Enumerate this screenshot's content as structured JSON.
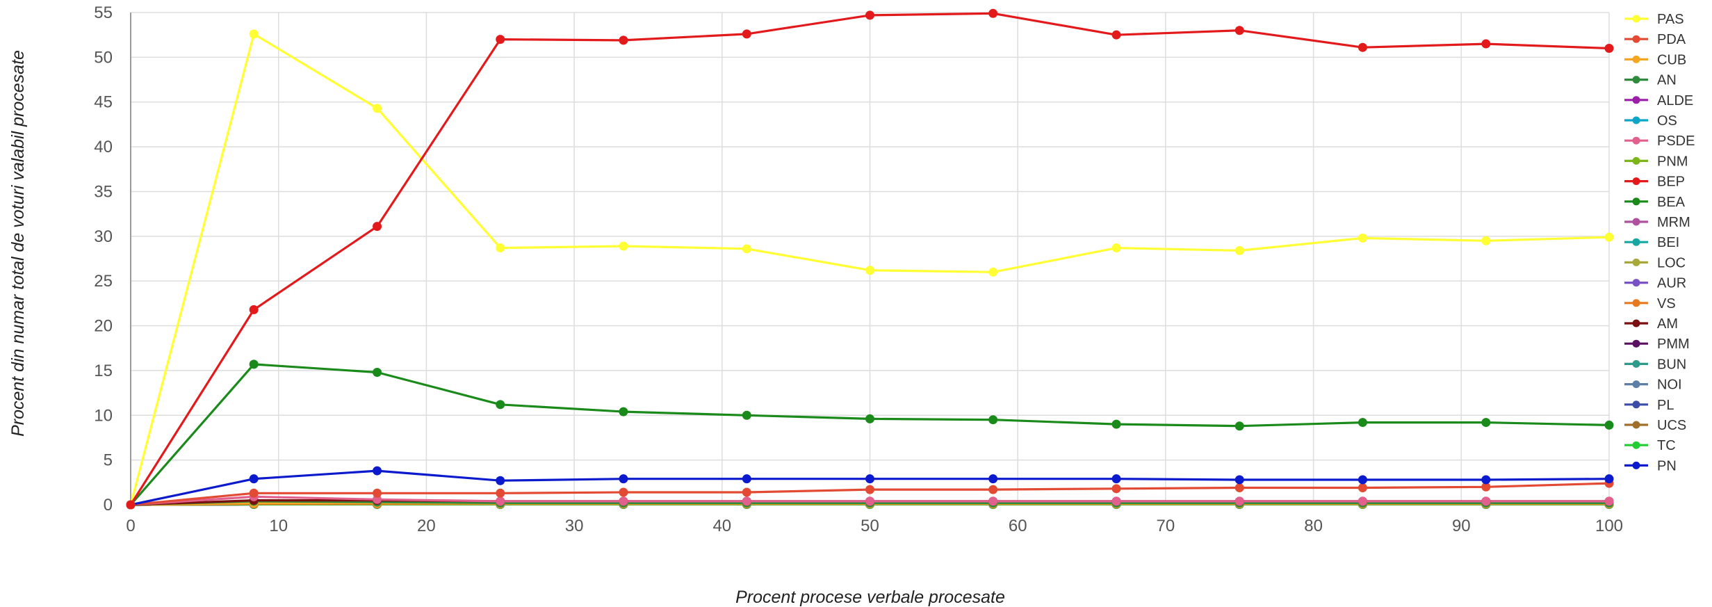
{
  "chart_data": {
    "type": "line",
    "xlabel": "Procent procese verbale procesate",
    "ylabel": "Procent din numar total de voturi valabil procesate",
    "xlim": [
      0,
      100
    ],
    "ylim": [
      0,
      55
    ],
    "x_ticks": [
      "0",
      "10",
      "20",
      "30",
      "40",
      "50",
      "60",
      "70",
      "80",
      "90",
      "100"
    ],
    "y_ticks": [
      "0",
      "5",
      "10",
      "15",
      "20",
      "25",
      "30",
      "35",
      "40",
      "45",
      "50",
      "55"
    ],
    "grid": true,
    "legend_position": "right",
    "x": [
      0,
      8.33,
      16.67,
      25,
      33.33,
      41.67,
      50,
      58.33,
      66.67,
      75,
      83.33,
      91.67,
      100
    ],
    "series": [
      {
        "name": "PAS",
        "color": "#ffff33",
        "values": [
          0,
          52.6,
          44.3,
          28.7,
          28.9,
          28.6,
          26.2,
          26.0,
          28.7,
          28.4,
          29.8,
          29.5,
          29.9
        ]
      },
      {
        "name": "PDA",
        "color": "#e34a33",
        "values": [
          0,
          1.3,
          1.3,
          1.3,
          1.4,
          1.4,
          1.7,
          1.7,
          1.8,
          1.9,
          1.9,
          2.0,
          2.4
        ]
      },
      {
        "name": "CUB",
        "color": "#f5a623",
        "values": [
          0,
          0.2,
          0.2,
          0.15,
          0.15,
          0.15,
          0.15,
          0.15,
          0.15,
          0.15,
          0.15,
          0.15,
          0.15
        ]
      },
      {
        "name": "AN",
        "color": "#2e8b3e",
        "values": [
          0,
          0.4,
          0.3,
          0.2,
          0.2,
          0.2,
          0.2,
          0.2,
          0.2,
          0.2,
          0.2,
          0.2,
          0.2
        ]
      },
      {
        "name": "ALDE",
        "color": "#9b1fa8",
        "values": [
          0,
          0.1,
          0.1,
          0.1,
          0.1,
          0.1,
          0.1,
          0.1,
          0.1,
          0.1,
          0.1,
          0.1,
          0.1
        ]
      },
      {
        "name": "OS",
        "color": "#0ea5c6",
        "values": [
          0,
          0.1,
          0.1,
          0.1,
          0.1,
          0.1,
          0.1,
          0.1,
          0.1,
          0.1,
          0.1,
          0.1,
          0.1
        ]
      },
      {
        "name": "PSDE",
        "color": "#e2608c",
        "values": [
          0,
          0.9,
          0.6,
          0.4,
          0.4,
          0.4,
          0.4,
          0.4,
          0.4,
          0.4,
          0.4,
          0.4,
          0.4
        ]
      },
      {
        "name": "PNM",
        "color": "#7cb518",
        "values": [
          0,
          0.1,
          0.1,
          0.1,
          0.1,
          0.1,
          0.1,
          0.1,
          0.1,
          0.1,
          0.1,
          0.1,
          0.1
        ]
      },
      {
        "name": "BEP",
        "color": "#e31a1c",
        "values": [
          0,
          21.8,
          31.1,
          52.0,
          51.9,
          52.6,
          54.7,
          54.9,
          52.5,
          53.0,
          51.1,
          51.5,
          51.0
        ]
      },
      {
        "name": "BEA",
        "color": "#1a8a1a",
        "values": [
          0,
          15.7,
          14.8,
          11.2,
          10.4,
          10.0,
          9.6,
          9.5,
          9.0,
          8.8,
          9.2,
          9.2,
          8.9
        ]
      },
      {
        "name": "MRM",
        "color": "#b0509e",
        "values": [
          0,
          0.05,
          0.05,
          0.05,
          0.05,
          0.05,
          0.05,
          0.05,
          0.05,
          0.05,
          0.05,
          0.05,
          0.05
        ]
      },
      {
        "name": "BEI",
        "color": "#17a7a3",
        "values": [
          0,
          0.05,
          0.05,
          0.05,
          0.05,
          0.05,
          0.05,
          0.05,
          0.05,
          0.05,
          0.05,
          0.05,
          0.05
        ]
      },
      {
        "name": "LOC",
        "color": "#a8a83a",
        "values": [
          0,
          0.05,
          0.05,
          0.05,
          0.05,
          0.05,
          0.05,
          0.05,
          0.05,
          0.05,
          0.05,
          0.05,
          0.05
        ]
      },
      {
        "name": "AUR",
        "color": "#7a52c7",
        "values": [
          0,
          0.05,
          0.05,
          0.05,
          0.05,
          0.05,
          0.05,
          0.05,
          0.05,
          0.05,
          0.05,
          0.05,
          0.05
        ]
      },
      {
        "name": "VS",
        "color": "#e8791e",
        "values": [
          0,
          0.1,
          0.1,
          0.1,
          0.1,
          0.1,
          0.1,
          0.1,
          0.1,
          0.1,
          0.1,
          0.1,
          0.1
        ]
      },
      {
        "name": "AM",
        "color": "#7a0f0f",
        "values": [
          0,
          0.5,
          0.5,
          0.4,
          0.4,
          0.4,
          0.4,
          0.4,
          0.4,
          0.4,
          0.4,
          0.4,
          0.4
        ]
      },
      {
        "name": "PMM",
        "color": "#5a1060",
        "values": [
          0,
          0.05,
          0.05,
          0.05,
          0.05,
          0.05,
          0.05,
          0.05,
          0.05,
          0.05,
          0.05,
          0.05,
          0.05
        ]
      },
      {
        "name": "BUN",
        "color": "#2e9a8a",
        "values": [
          0,
          0.05,
          0.05,
          0.05,
          0.05,
          0.05,
          0.05,
          0.05,
          0.05,
          0.05,
          0.05,
          0.05,
          0.05
        ]
      },
      {
        "name": "NOI",
        "color": "#5b7fa6",
        "values": [
          0,
          0.05,
          0.05,
          0.05,
          0.05,
          0.05,
          0.05,
          0.05,
          0.05,
          0.05,
          0.05,
          0.05,
          0.05
        ]
      },
      {
        "name": "PL",
        "color": "#3c4da8",
        "values": [
          0,
          0.05,
          0.05,
          0.05,
          0.05,
          0.05,
          0.05,
          0.05,
          0.05,
          0.05,
          0.05,
          0.05,
          0.05
        ]
      },
      {
        "name": "UCS",
        "color": "#a0702a",
        "values": [
          0,
          0.05,
          0.05,
          0.05,
          0.05,
          0.05,
          0.05,
          0.05,
          0.05,
          0.05,
          0.05,
          0.05,
          0.05
        ]
      },
      {
        "name": "TC",
        "color": "#22cc33",
        "values": [
          0,
          0.05,
          0.05,
          0.05,
          0.05,
          0.05,
          0.05,
          0.05,
          0.05,
          0.05,
          0.05,
          0.05,
          0.05
        ]
      },
      {
        "name": "PN",
        "color": "#0a1acc",
        "values": [
          0,
          2.9,
          3.8,
          2.7,
          2.9,
          2.9,
          2.9,
          2.9,
          2.9,
          2.8,
          2.8,
          2.8,
          2.9
        ]
      }
    ]
  }
}
